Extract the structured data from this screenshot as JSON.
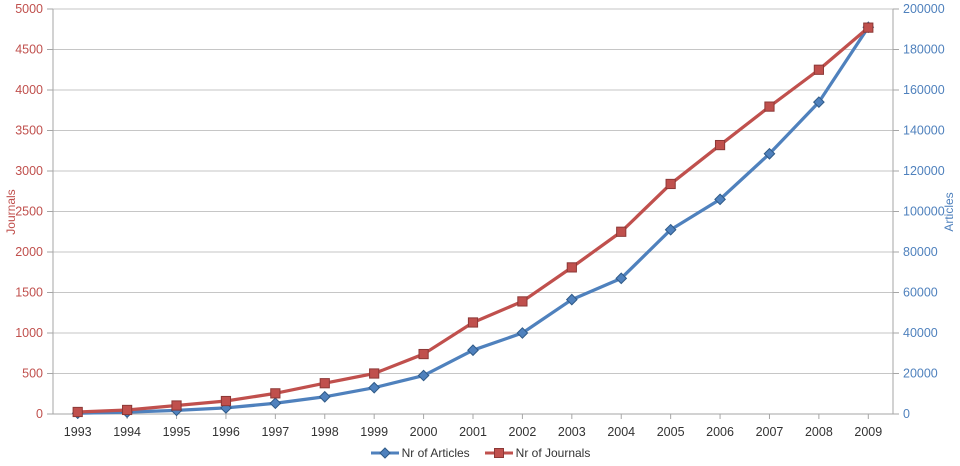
{
  "chart_data": {
    "type": "line",
    "title": "",
    "categories": [
      "1993",
      "1994",
      "1995",
      "1996",
      "1997",
      "1998",
      "1999",
      "2000",
      "2001",
      "2002",
      "2003",
      "2004",
      "2005",
      "2006",
      "2007",
      "2008",
      "2009"
    ],
    "series": [
      {
        "name": "Nr of Articles",
        "axis": "right",
        "marker": "diamond",
        "color": "#4F81BD",
        "marker_border": "#2F5A87",
        "values": [
          400,
          900,
          1800,
          3000,
          5300,
          8500,
          13000,
          19000,
          31500,
          40000,
          56500,
          67000,
          91000,
          106000,
          128500,
          154000,
          191000
        ]
      },
      {
        "name": "Nr of Journals",
        "axis": "left",
        "marker": "square",
        "color": "#C0504D",
        "marker_border": "#8C3836",
        "values": [
          25,
          50,
          105,
          160,
          255,
          380,
          500,
          740,
          1130,
          1390,
          1810,
          2250,
          2840,
          3320,
          3795,
          4250,
          4770
        ]
      }
    ],
    "axes": {
      "left": {
        "label": "Journals",
        "min": 0,
        "max": 5000,
        "step": 500,
        "color": "#C0504D",
        "ticks": [
          "0",
          "500",
          "1000",
          "1500",
          "2000",
          "2500",
          "3000",
          "3500",
          "4000",
          "4500",
          "5000"
        ]
      },
      "right": {
        "label": "Articles",
        "min": 0,
        "max": 200000,
        "step": 20000,
        "color": "#4F81BD",
        "ticks": [
          "0",
          "20000",
          "40000",
          "60000",
          "80000",
          "100000",
          "120000",
          "140000",
          "160000",
          "180000",
          "200000"
        ]
      },
      "x": {
        "label": "",
        "color": "#333333"
      }
    },
    "legend": {
      "position": "bottom",
      "entries": [
        "Nr of Articles",
        "Nr of Journals"
      ]
    },
    "grid": true
  },
  "styles": {
    "background": "#FFFFFF",
    "grid_color": "#C6C6C6",
    "axis_line_color": "#A6A6A6",
    "x_tick_text_color": "#333333",
    "legend_text_color": "#333333"
  }
}
